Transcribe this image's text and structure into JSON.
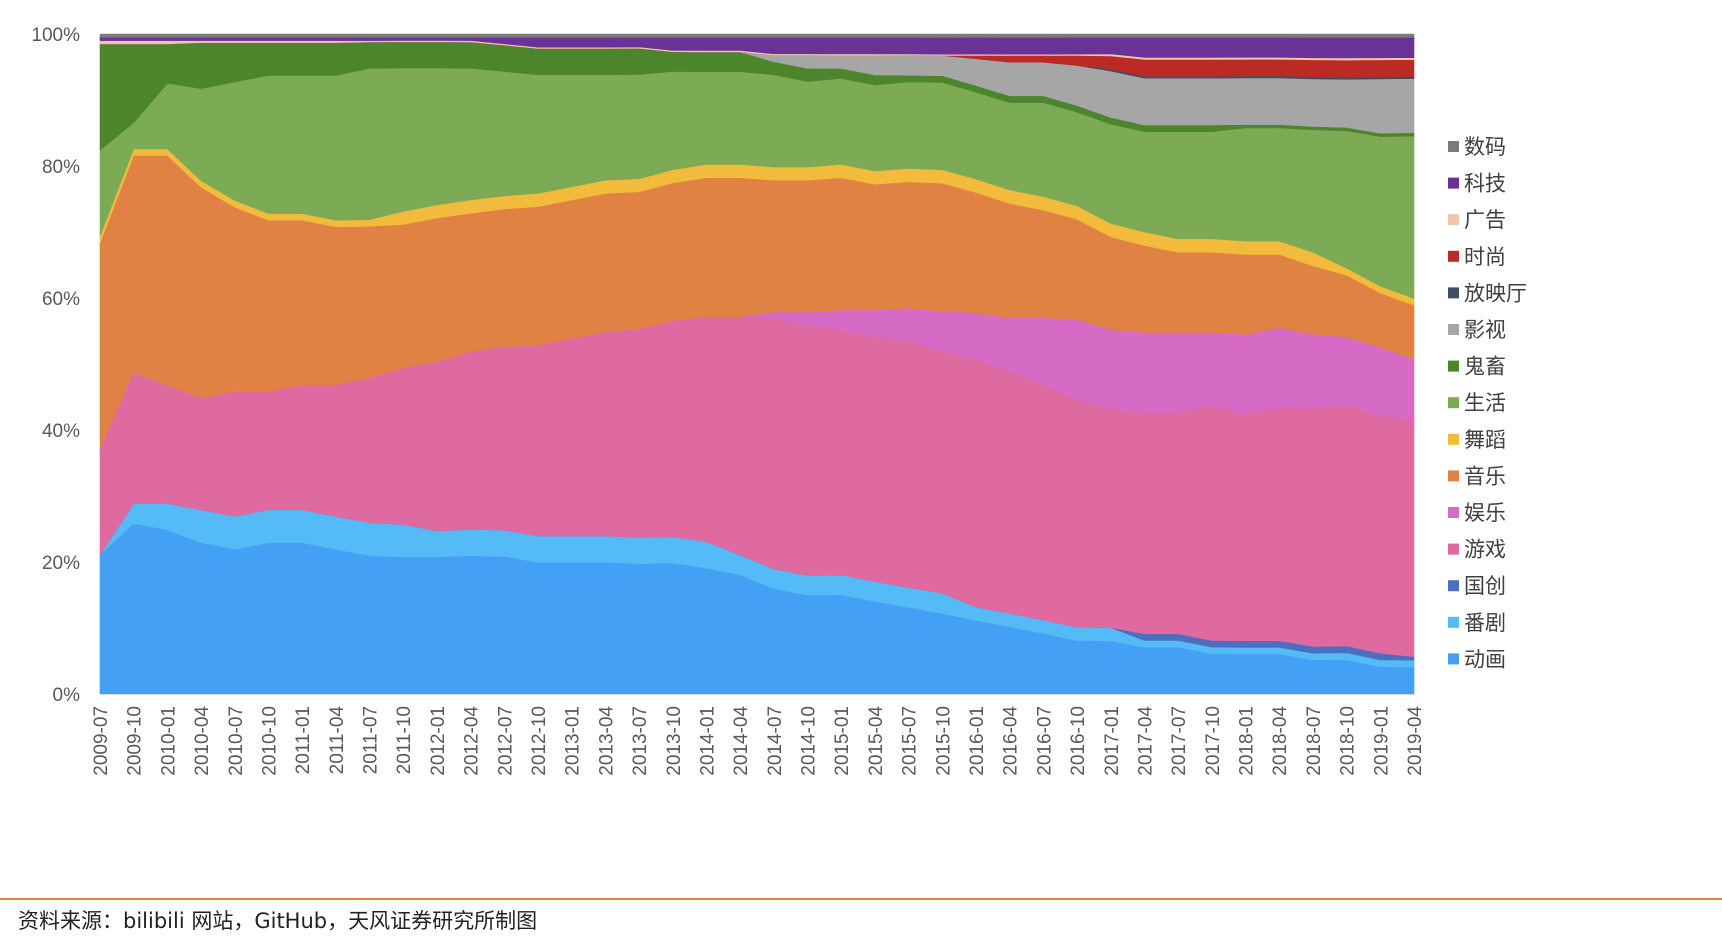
{
  "chart_data": {
    "type": "area",
    "stacked": true,
    "percent": true,
    "title": "",
    "xlabel": "",
    "ylabel": "",
    "ylim": [
      0,
      100
    ],
    "y_ticks": [
      "0%",
      "20%",
      "40%",
      "60%",
      "80%",
      "100%"
    ],
    "grid": false,
    "legend_position": "right",
    "categories": [
      "2009-07",
      "2009-10",
      "2010-01",
      "2010-04",
      "2010-07",
      "2010-10",
      "2011-01",
      "2011-04",
      "2011-07",
      "2011-10",
      "2012-01",
      "2012-04",
      "2012-07",
      "2012-10",
      "2013-01",
      "2013-04",
      "2013-07",
      "2013-10",
      "2014-01",
      "2014-04",
      "2014-07",
      "2014-10",
      "2015-01",
      "2015-04",
      "2015-07",
      "2015-10",
      "2016-01",
      "2016-04",
      "2016-07",
      "2016-10",
      "2017-01",
      "2017-04",
      "2017-07",
      "2017-10",
      "2018-01",
      "2018-04",
      "2018-07",
      "2018-10",
      "2019-01",
      "2019-04"
    ],
    "series": [
      {
        "name": "动画",
        "color": "#44a0f4",
        "values": [
          21,
          26,
          25,
          23,
          22,
          23,
          23,
          22,
          21,
          21,
          21,
          21,
          21,
          20,
          20,
          20,
          20,
          20,
          19,
          18,
          16,
          15,
          15,
          14,
          13,
          12,
          11,
          10,
          9,
          8,
          8,
          7,
          7,
          6,
          6,
          6,
          5,
          5,
          4,
          4
        ]
      },
      {
        "name": "番剧",
        "color": "#55bbf7",
        "values": [
          0,
          3,
          4,
          5,
          5,
          5,
          5,
          5,
          5,
          5,
          4,
          4,
          4,
          4,
          4,
          4,
          4,
          4,
          4,
          3,
          3,
          3,
          3,
          3,
          3,
          3,
          2,
          2,
          2,
          2,
          2,
          1,
          1,
          1,
          1,
          1,
          1,
          1,
          1,
          1
        ]
      },
      {
        "name": "国创",
        "color": "#4b6fc0",
        "values": [
          0,
          0,
          0,
          0,
          0,
          0,
          0,
          0,
          0,
          0,
          0,
          0,
          0,
          0,
          0,
          0,
          0,
          0,
          0,
          0,
          0,
          0,
          0,
          0,
          0,
          0,
          0,
          0,
          0,
          0,
          0,
          1,
          1,
          1,
          1,
          1,
          1,
          1,
          1,
          0.5
        ]
      },
      {
        "name": "游戏",
        "color": "#de6aa0",
        "values": [
          16,
          20,
          18,
          17,
          19,
          18,
          19,
          20,
          22,
          24,
          26,
          27,
          28,
          29,
          30,
          31,
          32,
          33,
          34,
          36,
          38,
          38,
          37,
          37,
          37,
          36,
          37,
          36,
          35,
          34,
          33,
          33,
          33,
          35,
          34,
          35,
          35,
          35,
          35,
          35
        ]
      },
      {
        "name": "娱乐",
        "color": "#d66bc5",
        "values": [
          0,
          0,
          0,
          0,
          0,
          0,
          0,
          0,
          0,
          0,
          0,
          0,
          0,
          0,
          0,
          0,
          0,
          0,
          0,
          0,
          1,
          2,
          3,
          4,
          5,
          6,
          7,
          8,
          10,
          12,
          12,
          12,
          12,
          11,
          12,
          12,
          11,
          10,
          10,
          9
        ]
      },
      {
        "name": "音乐",
        "color": "#e08244",
        "values": [
          31,
          33,
          35,
          32,
          28,
          26,
          25,
          24,
          23,
          22,
          22,
          21,
          21,
          21,
          21,
          21,
          21,
          21,
          21,
          21,
          20,
          20,
          20,
          19,
          19,
          19,
          18,
          17,
          16,
          15,
          14,
          13,
          12,
          12,
          12,
          11,
          10,
          9,
          8,
          8
        ]
      },
      {
        "name": "舞蹈",
        "color": "#f3bb3c",
        "values": [
          1,
          1,
          1,
          1,
          1,
          1,
          1,
          1,
          1,
          2,
          2,
          2,
          2,
          2,
          2,
          2,
          2,
          2,
          2,
          2,
          2,
          2,
          2,
          2,
          2,
          2,
          2,
          2,
          2,
          2,
          2,
          2,
          2,
          2,
          2,
          2,
          2,
          1,
          1,
          1
        ]
      },
      {
        "name": "生活",
        "color": "#7dab55",
        "values": [
          13,
          4,
          10,
          14,
          18,
          21,
          21,
          22,
          23,
          22,
          21,
          20,
          19,
          18,
          17,
          16,
          16,
          15,
          14,
          14,
          14,
          13,
          13,
          13,
          13,
          13,
          13,
          13,
          14,
          14,
          15,
          15,
          16,
          16,
          17,
          17,
          18,
          20,
          22,
          24
        ]
      },
      {
        "name": "鬼畜",
        "color": "#4c852c",
        "values": [
          16,
          12,
          6,
          7,
          6,
          5,
          5,
          5,
          4,
          4,
          4,
          4,
          4,
          4,
          4,
          4,
          4,
          3,
          3,
          3,
          2,
          2,
          1.5,
          1.5,
          1,
          1,
          1,
          1,
          1,
          1,
          1,
          1,
          1,
          1,
          0.5,
          0.5,
          0.5,
          0.5,
          0.5,
          0.5
        ]
      },
      {
        "name": "影视",
        "color": "#a6a6a6",
        "values": [
          0,
          0,
          0,
          0,
          0,
          0,
          0,
          0,
          0,
          0,
          0,
          0,
          0,
          0,
          0,
          0,
          0,
          0,
          0,
          0,
          1,
          2,
          2,
          3,
          3,
          3,
          4,
          5,
          5,
          6,
          7,
          7,
          7,
          7,
          7,
          7,
          7,
          7,
          8,
          8
        ]
      },
      {
        "name": "放映厅",
        "color": "#3f4e63",
        "values": [
          0,
          0,
          0,
          0,
          0,
          0,
          0,
          0,
          0,
          0,
          0,
          0,
          0,
          0,
          0,
          0,
          0,
          0,
          0,
          0,
          0,
          0,
          0,
          0,
          0,
          0,
          0,
          0,
          0,
          0,
          0.3,
          0.3,
          0.3,
          0.3,
          0.3,
          0.3,
          0.3,
          0.3,
          0.3,
          0.3
        ]
      },
      {
        "name": "时尚",
        "color": "#bb2a24",
        "values": [
          0,
          0,
          0,
          0,
          0,
          0,
          0,
          0,
          0,
          0,
          0,
          0,
          0,
          0,
          0,
          0,
          0,
          0,
          0,
          0,
          0,
          0,
          0,
          0,
          0,
          0,
          0.5,
          1,
          1,
          1.5,
          2,
          2.5,
          2.5,
          2.5,
          2.5,
          2.5,
          2.5,
          2.5,
          2.5,
          2.5
        ]
      },
      {
        "name": "广告",
        "color": "#f0c6a8",
        "values": [
          0.5,
          0.5,
          0.5,
          0.3,
          0.3,
          0.3,
          0.3,
          0.3,
          0.2,
          0.2,
          0.2,
          0.2,
          0.2,
          0.2,
          0.2,
          0.2,
          0.2,
          0.2,
          0.2,
          0.2,
          0.2,
          0.2,
          0.2,
          0.2,
          0.2,
          0.2,
          0.2,
          0.2,
          0.2,
          0.2,
          0.3,
          0.3,
          0.3,
          0.3,
          0.3,
          0.3,
          0.3,
          0.3,
          0.3,
          0.3
        ]
      },
      {
        "name": "科技",
        "color": "#6a3198",
        "values": [
          0.5,
          0.5,
          0.5,
          0.5,
          0.5,
          0.5,
          0.5,
          0.5,
          0.5,
          0.5,
          0.5,
          0.5,
          1,
          1.5,
          1.5,
          1.5,
          1.5,
          2,
          2,
          2,
          2.5,
          2.5,
          2.5,
          2.5,
          2.5,
          2.5,
          2.5,
          2.5,
          2.5,
          2.5,
          2.5,
          3,
          3,
          3,
          3,
          3,
          3,
          3,
          3,
          3
        ]
      },
      {
        "name": "数码",
        "color": "#7b7b7b",
        "values": [
          0.5,
          0.5,
          0.5,
          0.5,
          0.5,
          0.5,
          0.5,
          0.5,
          0.5,
          0.5,
          0.5,
          0.5,
          0.5,
          0.5,
          0.5,
          0.5,
          0.5,
          0.5,
          0.5,
          0.5,
          0.5,
          0.5,
          0.5,
          0.5,
          0.5,
          0.5,
          0.5,
          0.5,
          0.5,
          0.5,
          0.5,
          0.5,
          0.5,
          0.5,
          0.5,
          0.5,
          0.5,
          0.5,
          0.5,
          0.5
        ]
      }
    ],
    "legend_order": [
      "数码",
      "科技",
      "广告",
      "时尚",
      "放映厅",
      "影视",
      "鬼畜",
      "生活",
      "舞蹈",
      "音乐",
      "娱乐",
      "游戏",
      "国创",
      "番剧",
      "动画"
    ]
  },
  "source_note": "资料来源：bilibili 网站，GitHub，天风证券研究所制图",
  "colors": {
    "footer_rule": "#e2843f"
  }
}
